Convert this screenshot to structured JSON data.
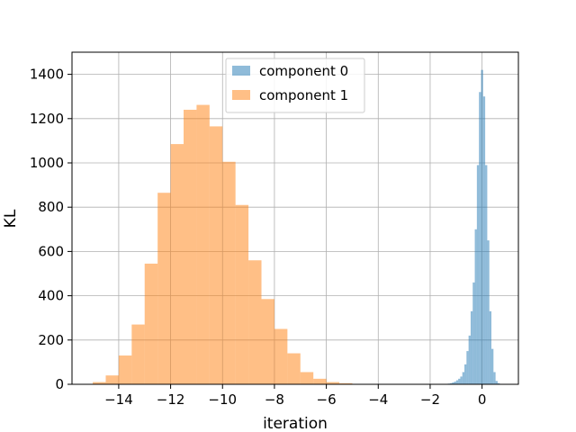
{
  "chart_data": {
    "type": "bar",
    "xlabel": "iteration",
    "ylabel": "KL",
    "xlim": [
      -15.8,
      1.4
    ],
    "ylim": [
      0,
      1500
    ],
    "xticks": [
      -14,
      -12,
      -10,
      -8,
      -6,
      -4,
      -2,
      0
    ],
    "xtick_labels": [
      "−14",
      "−12",
      "−10",
      "−8",
      "−6",
      "−4",
      "−2",
      "0"
    ],
    "yticks": [
      0,
      200,
      400,
      600,
      800,
      1000,
      1200,
      1400
    ],
    "ytick_labels": [
      "0",
      "200",
      "400",
      "600",
      "800",
      "1000",
      "1200",
      "1400"
    ],
    "grid": true,
    "legend_position": "top-center",
    "series": [
      {
        "name": "component 0",
        "color": "#1f77b4",
        "alpha": 0.5,
        "bins": [
          {
            "x0": -1.4,
            "x1": -1.32,
            "y": 2
          },
          {
            "x0": -1.32,
            "x1": -1.24,
            "y": 3
          },
          {
            "x0": -1.24,
            "x1": -1.16,
            "y": 5
          },
          {
            "x0": -1.16,
            "x1": -1.08,
            "y": 8
          },
          {
            "x0": -1.08,
            "x1": -1.0,
            "y": 12
          },
          {
            "x0": -1.0,
            "x1": -0.92,
            "y": 18
          },
          {
            "x0": -0.92,
            "x1": -0.84,
            "y": 25
          },
          {
            "x0": -0.84,
            "x1": -0.76,
            "y": 35
          },
          {
            "x0": -0.76,
            "x1": -0.68,
            "y": 55
          },
          {
            "x0": -0.68,
            "x1": -0.6,
            "y": 90
          },
          {
            "x0": -0.6,
            "x1": -0.52,
            "y": 150
          },
          {
            "x0": -0.52,
            "x1": -0.44,
            "y": 220
          },
          {
            "x0": -0.44,
            "x1": -0.36,
            "y": 330
          },
          {
            "x0": -0.36,
            "x1": -0.28,
            "y": 460
          },
          {
            "x0": -0.28,
            "x1": -0.2,
            "y": 700
          },
          {
            "x0": -0.2,
            "x1": -0.12,
            "y": 990
          },
          {
            "x0": -0.12,
            "x1": -0.04,
            "y": 1320
          },
          {
            "x0": -0.04,
            "x1": 0.04,
            "y": 1420
          },
          {
            "x0": 0.04,
            "x1": 0.12,
            "y": 1300
          },
          {
            "x0": 0.12,
            "x1": 0.2,
            "y": 990
          },
          {
            "x0": 0.2,
            "x1": 0.28,
            "y": 650
          },
          {
            "x0": 0.28,
            "x1": 0.36,
            "y": 330
          },
          {
            "x0": 0.36,
            "x1": 0.44,
            "y": 160
          },
          {
            "x0": 0.44,
            "x1": 0.52,
            "y": 55
          },
          {
            "x0": 0.52,
            "x1": 0.6,
            "y": 15
          },
          {
            "x0": 0.6,
            "x1": 0.68,
            "y": 5
          }
        ]
      },
      {
        "name": "component 1",
        "color": "#ff7f0e",
        "alpha": 0.5,
        "bins": [
          {
            "x0": -15.0,
            "x1": -14.5,
            "y": 10
          },
          {
            "x0": -14.5,
            "x1": -14.0,
            "y": 40
          },
          {
            "x0": -14.0,
            "x1": -13.5,
            "y": 130
          },
          {
            "x0": -13.5,
            "x1": -13.0,
            "y": 270
          },
          {
            "x0": -13.0,
            "x1": -12.5,
            "y": 545
          },
          {
            "x0": -12.5,
            "x1": -12.0,
            "y": 865
          },
          {
            "x0": -12.0,
            "x1": -11.5,
            "y": 1085
          },
          {
            "x0": -11.5,
            "x1": -11.0,
            "y": 1240
          },
          {
            "x0": -11.0,
            "x1": -10.5,
            "y": 1262
          },
          {
            "x0": -10.5,
            "x1": -10.0,
            "y": 1165
          },
          {
            "x0": -10.0,
            "x1": -9.5,
            "y": 1005
          },
          {
            "x0": -9.5,
            "x1": -9.0,
            "y": 810
          },
          {
            "x0": -9.0,
            "x1": -8.5,
            "y": 560
          },
          {
            "x0": -8.5,
            "x1": -8.0,
            "y": 385
          },
          {
            "x0": -8.0,
            "x1": -7.5,
            "y": 250
          },
          {
            "x0": -7.5,
            "x1": -7.0,
            "y": 140
          },
          {
            "x0": -7.0,
            "x1": -6.5,
            "y": 55
          },
          {
            "x0": -6.5,
            "x1": -6.0,
            "y": 25
          },
          {
            "x0": -6.0,
            "x1": -5.5,
            "y": 10
          },
          {
            "x0": -5.5,
            "x1": -5.0,
            "y": 5
          }
        ]
      }
    ]
  }
}
